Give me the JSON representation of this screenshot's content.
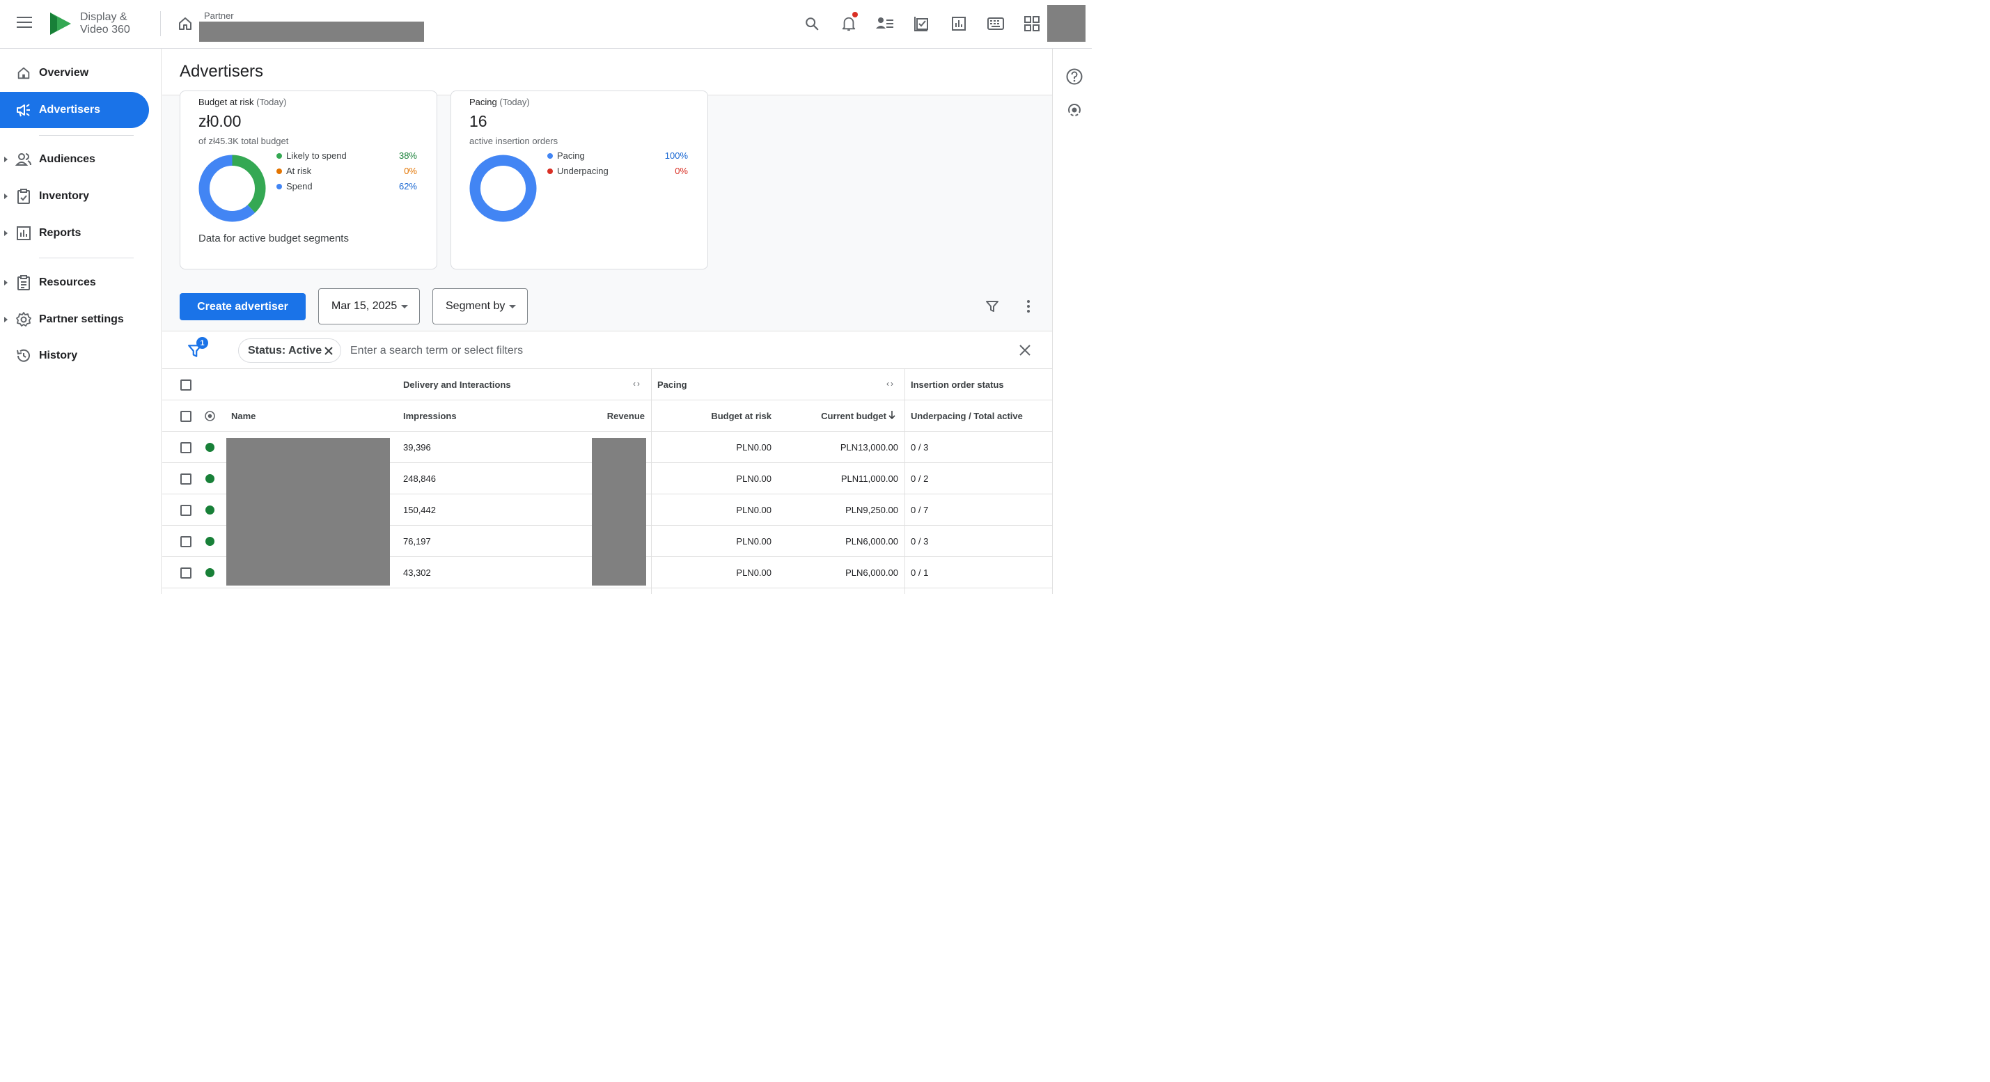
{
  "app": {
    "brand_line1": "Display &",
    "brand_line2": "Video 360",
    "partner_label": "Partner",
    "brand_colors": {
      "logo_green": "#34a853",
      "logo_dark_green": "#188038",
      "accent": "#1a73e8"
    }
  },
  "topbar_icons": [
    "menu-icon",
    "home-icon",
    "search-icon",
    "notifications-icon",
    "account-list-icon",
    "tasks-icon",
    "reports-icon",
    "keyboard-icon",
    "apps-grid-icon"
  ],
  "sidebar": {
    "items": [
      {
        "label": "Overview",
        "icon": "home-icon",
        "active": false,
        "expandable": false
      },
      {
        "label": "Advertisers",
        "icon": "campaign-icon",
        "active": true,
        "expandable": false
      },
      {
        "label": "Audiences",
        "icon": "people-icon",
        "active": false,
        "expandable": true
      },
      {
        "label": "Inventory",
        "icon": "inventory-icon",
        "active": false,
        "expandable": true
      },
      {
        "label": "Reports",
        "icon": "chart-icon",
        "active": false,
        "expandable": true
      },
      {
        "label": "Resources",
        "icon": "document-icon",
        "active": false,
        "expandable": true
      },
      {
        "label": "Partner settings",
        "icon": "gear-icon",
        "active": false,
        "expandable": true
      },
      {
        "label": "History",
        "icon": "history-icon",
        "active": false,
        "expandable": false
      }
    ]
  },
  "page": {
    "title": "Advertisers"
  },
  "cards": {
    "budget": {
      "title": "Budget at risk",
      "title_suffix": "(Today)",
      "value": "zł0.00",
      "subtitle": "of zł45.3K total budget",
      "legend": [
        {
          "label": "Likely to spend",
          "value": "38%",
          "color": "#34a853",
          "value_color": "#188038"
        },
        {
          "label": "At risk",
          "value": "0%",
          "color": "#e37400",
          "value_color": "#e37400"
        },
        {
          "label": "Spend",
          "value": "62%",
          "color": "#4285f4",
          "value_color": "#1967d2"
        }
      ],
      "footer": "Data for active budget segments"
    },
    "pacing": {
      "title": "Pacing",
      "title_suffix": "(Today)",
      "value": "16",
      "subtitle": "active insertion orders",
      "legend": [
        {
          "label": "Pacing",
          "value": "100%",
          "color": "#4285f4",
          "value_color": "#1967d2"
        },
        {
          "label": "Underpacing",
          "value": "0%",
          "color": "#d93025",
          "value_color": "#d93025"
        }
      ]
    }
  },
  "toolbar": {
    "create_label": "Create advertiser",
    "date_label": "Mar 15, 2025",
    "segment_label": "Segment by"
  },
  "filterbar": {
    "badge_count": "1",
    "chip_label": "Status: Active",
    "search_placeholder": "Enter a search term or select filters"
  },
  "table": {
    "groups": {
      "delivery": "Delivery and Interactions",
      "pacing": "Pacing",
      "io_status": "Insertion order status"
    },
    "columns": {
      "name": "Name",
      "impressions": "Impressions",
      "revenue": "Revenue",
      "budget_at_risk": "Budget at risk",
      "current_budget": "Current budget",
      "underpacing": "Underpacing / Total active"
    },
    "rows": [
      {
        "impressions": "39,396",
        "budget_at_risk": "PLN0.00",
        "current_budget": "PLN13,000.00",
        "underpacing": "0 / 3",
        "status_color": "#188038"
      },
      {
        "impressions": "248,846",
        "budget_at_risk": "PLN0.00",
        "current_budget": "PLN11,000.00",
        "underpacing": "0 / 2",
        "status_color": "#188038"
      },
      {
        "impressions": "150,442",
        "budget_at_risk": "PLN0.00",
        "current_budget": "PLN9,250.00",
        "underpacing": "0 / 7",
        "status_color": "#188038"
      },
      {
        "impressions": "76,197",
        "budget_at_risk": "PLN0.00",
        "current_budget": "PLN6,000.00",
        "underpacing": "0 / 3",
        "status_color": "#188038"
      },
      {
        "impressions": "43,302",
        "budget_at_risk": "PLN0.00",
        "current_budget": "PLN6,000.00",
        "underpacing": "0 / 1",
        "status_color": "#188038"
      }
    ]
  },
  "chart_data": [
    {
      "type": "pie",
      "categories": [
        "Likely to spend",
        "At risk",
        "Spend"
      ],
      "values": [
        38,
        0,
        62
      ],
      "unit": "%"
    },
    {
      "type": "pie",
      "categories": [
        "Pacing",
        "Underpacing"
      ],
      "values": [
        100,
        0
      ],
      "unit": "%"
    }
  ]
}
